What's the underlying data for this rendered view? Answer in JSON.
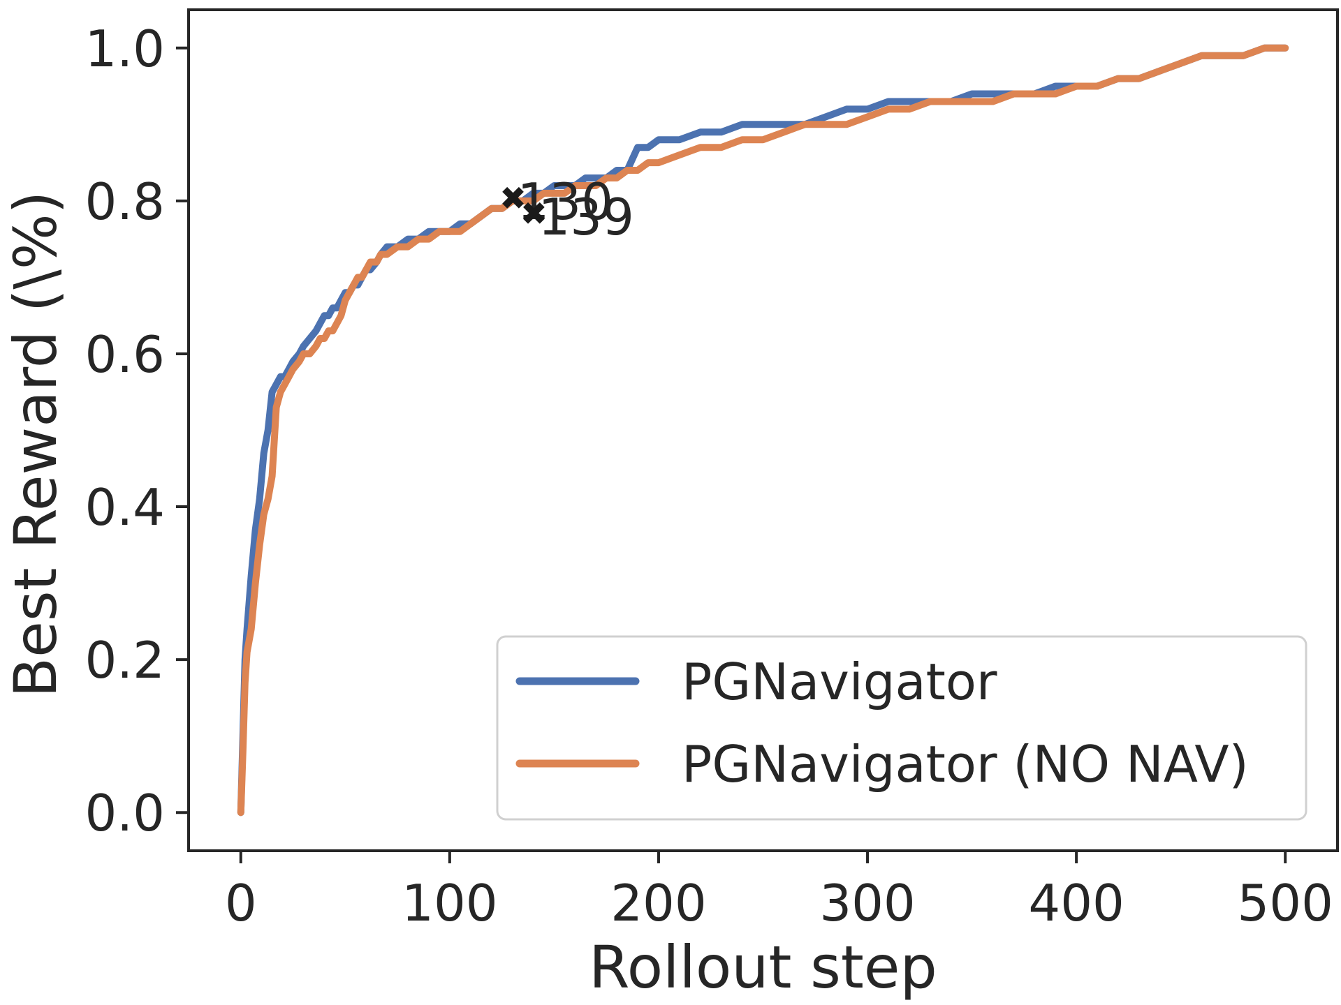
{
  "chart_data": {
    "type": "line",
    "title": "",
    "xlabel": "Rollout step",
    "ylabel": "Best Reward (\\%)",
    "xlim": [
      -25,
      525
    ],
    "ylim": [
      -0.05,
      1.05
    ],
    "xticks": [
      0,
      100,
      200,
      300,
      400,
      500
    ],
    "xtick_labels": [
      "0",
      "100",
      "200",
      "300",
      "400",
      "500"
    ],
    "yticks": [
      0.0,
      0.2,
      0.4,
      0.6,
      0.8,
      1.0
    ],
    "ytick_labels": [
      "0.0",
      "0.2",
      "0.4",
      "0.6",
      "0.8",
      "1.0"
    ],
    "grid": false,
    "legend_position": "lower-right",
    "series": [
      {
        "name": "PGNavigator",
        "color": "#4c72b0",
        "x": [
          0,
          1,
          2,
          3,
          5,
          7,
          9,
          11,
          13,
          15,
          17,
          19,
          21,
          23,
          25,
          28,
          30,
          33,
          36,
          38,
          40,
          42,
          44,
          46,
          48,
          50,
          52,
          54,
          56,
          58,
          60,
          62,
          65,
          67,
          70,
          75,
          80,
          85,
          90,
          95,
          100,
          105,
          110,
          115,
          120,
          125,
          130,
          135,
          140,
          145,
          150,
          155,
          160,
          165,
          170,
          175,
          180,
          185,
          190,
          195,
          200,
          210,
          220,
          230,
          240,
          250,
          260,
          270,
          280,
          290,
          300,
          310,
          320,
          330,
          340,
          350,
          360,
          370,
          380,
          390,
          400,
          410,
          420,
          430,
          440,
          450,
          460,
          470,
          480,
          490,
          500
        ],
        "y": [
          0.0,
          0.1,
          0.2,
          0.24,
          0.31,
          0.37,
          0.41,
          0.47,
          0.5,
          0.55,
          0.56,
          0.57,
          0.57,
          0.58,
          0.59,
          0.6,
          0.61,
          0.62,
          0.63,
          0.64,
          0.65,
          0.65,
          0.66,
          0.66,
          0.67,
          0.68,
          0.68,
          0.69,
          0.69,
          0.7,
          0.71,
          0.71,
          0.72,
          0.73,
          0.74,
          0.74,
          0.75,
          0.75,
          0.76,
          0.76,
          0.76,
          0.77,
          0.77,
          0.78,
          0.79,
          0.79,
          0.8,
          0.8,
          0.81,
          0.81,
          0.82,
          0.82,
          0.82,
          0.83,
          0.83,
          0.83,
          0.84,
          0.84,
          0.87,
          0.87,
          0.88,
          0.88,
          0.89,
          0.89,
          0.9,
          0.9,
          0.9,
          0.9,
          0.91,
          0.92,
          0.92,
          0.93,
          0.93,
          0.93,
          0.93,
          0.94,
          0.94,
          0.94,
          0.94,
          0.95,
          0.95,
          0.95,
          0.96,
          0.96,
          0.97,
          0.98,
          0.99,
          0.99,
          0.99,
          1.0,
          1.0
        ]
      },
      {
        "name": "PGNavigator (NO NAV)",
        "color": "#dd8452",
        "x": [
          0,
          1,
          2,
          3,
          5,
          7,
          9,
          11,
          13,
          15,
          17,
          19,
          21,
          23,
          25,
          28,
          30,
          33,
          36,
          38,
          40,
          42,
          44,
          46,
          48,
          50,
          52,
          54,
          56,
          58,
          60,
          62,
          65,
          67,
          70,
          75,
          80,
          85,
          90,
          95,
          100,
          105,
          110,
          115,
          120,
          125,
          130,
          135,
          140,
          145,
          150,
          155,
          160,
          165,
          170,
          175,
          180,
          185,
          190,
          195,
          200,
          210,
          220,
          230,
          240,
          250,
          260,
          270,
          280,
          290,
          300,
          310,
          320,
          330,
          340,
          350,
          360,
          370,
          380,
          390,
          400,
          410,
          420,
          430,
          440,
          450,
          460,
          470,
          480,
          490,
          500
        ],
        "y": [
          0.0,
          0.08,
          0.17,
          0.21,
          0.24,
          0.3,
          0.35,
          0.39,
          0.41,
          0.44,
          0.53,
          0.55,
          0.56,
          0.57,
          0.58,
          0.59,
          0.6,
          0.6,
          0.61,
          0.62,
          0.62,
          0.63,
          0.63,
          0.64,
          0.65,
          0.67,
          0.68,
          0.69,
          0.7,
          0.7,
          0.71,
          0.72,
          0.72,
          0.73,
          0.73,
          0.74,
          0.74,
          0.75,
          0.75,
          0.76,
          0.76,
          0.76,
          0.77,
          0.78,
          0.79,
          0.79,
          0.8,
          0.8,
          0.8,
          0.81,
          0.81,
          0.81,
          0.82,
          0.82,
          0.82,
          0.83,
          0.83,
          0.84,
          0.84,
          0.85,
          0.85,
          0.86,
          0.87,
          0.87,
          0.88,
          0.88,
          0.89,
          0.9,
          0.9,
          0.9,
          0.91,
          0.92,
          0.92,
          0.93,
          0.93,
          0.93,
          0.93,
          0.94,
          0.94,
          0.94,
          0.95,
          0.95,
          0.96,
          0.96,
          0.97,
          0.98,
          0.99,
          0.99,
          0.99,
          1.0,
          1.0
        ]
      }
    ],
    "annotations": [
      {
        "text": "130",
        "x": 135,
        "y": 0.8,
        "color": "#1a1a1a"
      },
      {
        "text": "139",
        "x": 145,
        "y": 0.78,
        "color": "#1a1a1a"
      }
    ]
  }
}
